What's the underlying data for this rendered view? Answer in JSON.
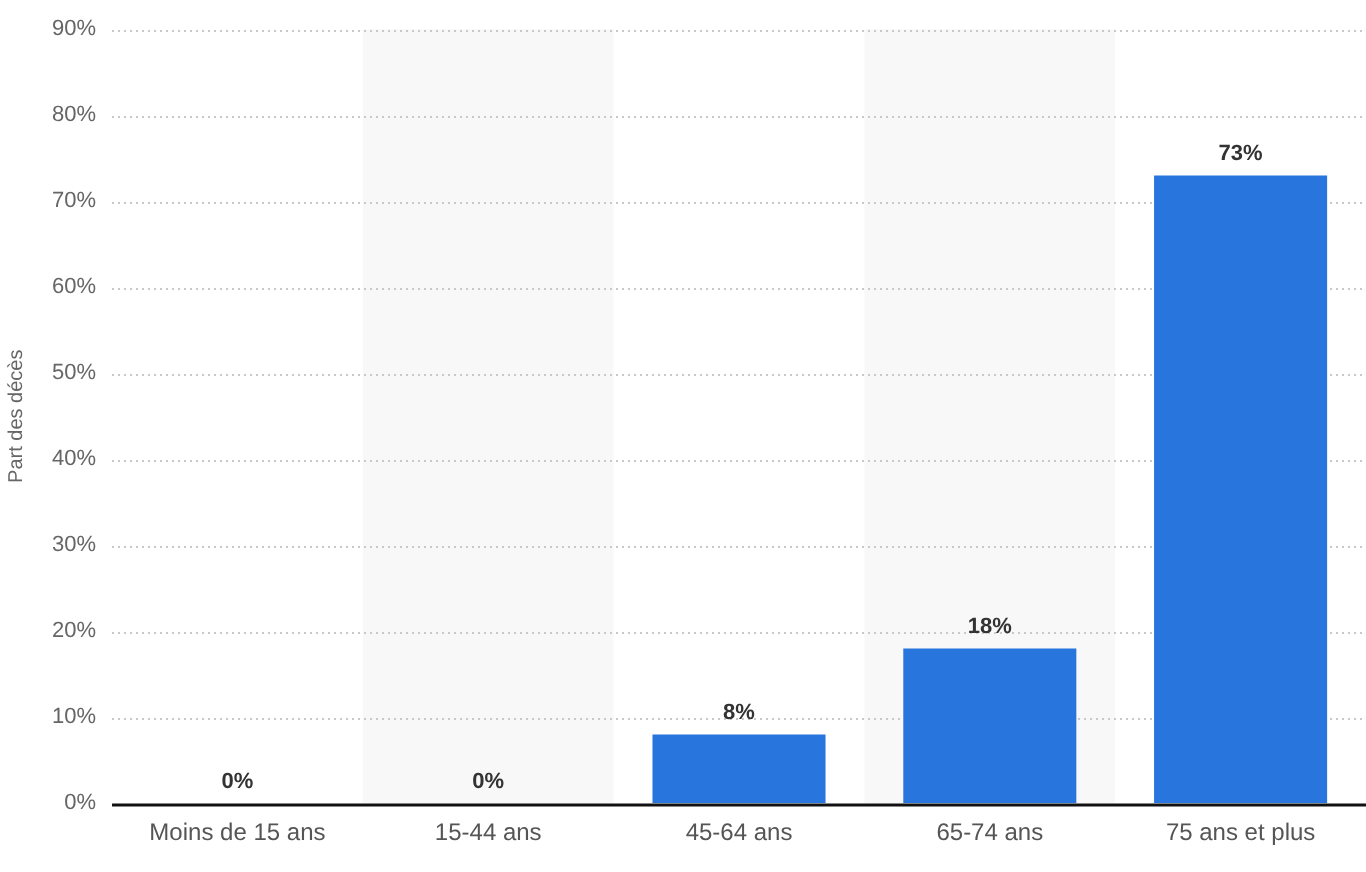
{
  "chart_data": {
    "type": "bar",
    "categories": [
      "Moins de 15 ans",
      "15-44 ans",
      "45-64 ans",
      "65-74 ans",
      "75 ans et plus"
    ],
    "values": [
      0,
      0,
      8,
      18,
      73
    ],
    "color": "#2775dd",
    "value_labels": [
      "0%",
      "0%",
      "8%",
      "18%",
      "73%"
    ],
    "ylabel": "Part des décès",
    "ylim": [
      0,
      90
    ],
    "yticks": [
      {
        "value": 0,
        "label": "0%"
      },
      {
        "value": 10,
        "label": "10%"
      },
      {
        "value": 20,
        "label": "20%"
      },
      {
        "value": 30,
        "label": "30%"
      },
      {
        "value": 40,
        "label": "40%"
      },
      {
        "value": 50,
        "label": "50%"
      },
      {
        "value": 60,
        "label": "60%"
      },
      {
        "value": 70,
        "label": "70%"
      },
      {
        "value": 80,
        "label": "80%"
      },
      {
        "value": 90,
        "label": "90%"
      }
    ],
    "grid": "y",
    "legend": false,
    "bands": [
      {
        "axis": "x",
        "from": "15-44 ans",
        "to": "15-44 ans",
        "color": "#f8f8f8"
      },
      {
        "axis": "x",
        "from": "65-74 ans",
        "to": "65-74 ans",
        "color": "#f8f8f8"
      }
    ]
  }
}
